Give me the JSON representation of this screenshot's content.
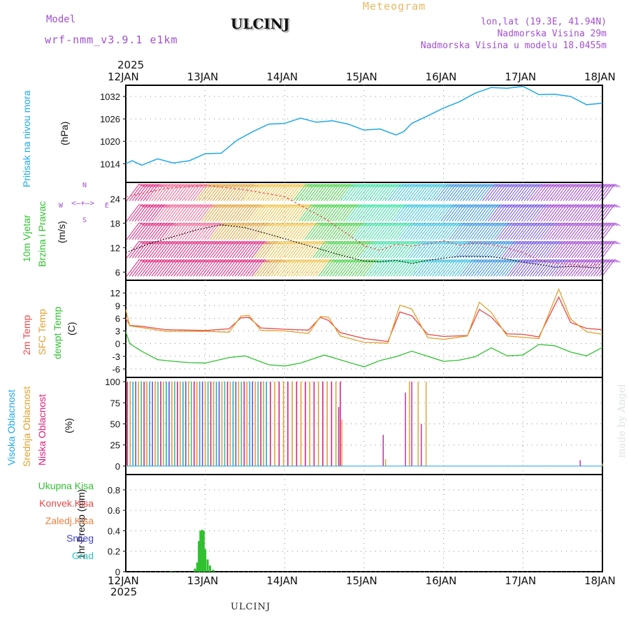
{
  "header": {
    "model_label": "Model",
    "model_name": "wrf-nmm_v3.9.1 e1km",
    "station": "ULCINJ",
    "meteogram": "Meteogram",
    "lonlat": "lon,lat (19.3E, 41.94N)",
    "elevation": "Nadmorska Visina 29m",
    "model_elevation": "Nadmorska Visina u modelu 18.0455m",
    "footer_station": "ULCINJ",
    "credit": "made by Angel"
  },
  "colors": {
    "pressure": "#1ea8e8",
    "temp2m": "#e84848",
    "sfc": "#e0a030",
    "dewpt": "#30c030",
    "high_cloud": "#1ea8e8",
    "mid_cloud": "#e0a030",
    "low_cloud": "#e0207a",
    "total_precip": "#30c030",
    "purple": "#a050d0"
  },
  "chart_data": [
    {
      "type": "line",
      "panel": "pressure",
      "ylabel_top": "Pritisak na nivou mora",
      "ylabel_unit": "(hPa)",
      "year": "2025",
      "x_tick_labels": [
        "12JAN",
        "13JAN",
        "14JAN",
        "15JAN",
        "16JAN",
        "17JAN",
        "18JAN"
      ],
      "x_range_days": [
        0,
        6
      ],
      "ylim": [
        1009,
        1035
      ],
      "yticks": [
        1014,
        1020,
        1026,
        1032
      ],
      "grid": true,
      "series": [
        {
          "x": [
            0,
            0.08,
            0.2,
            0.4,
            0.6,
            0.8,
            1.0,
            1.2,
            1.4,
            1.6,
            1.8,
            2.0,
            2.2,
            2.4,
            2.6,
            2.8,
            3.0,
            3.2,
            3.4,
            3.5,
            3.6,
            3.8,
            4.0,
            4.2,
            4.4,
            4.6,
            4.8,
            5.0,
            5.2,
            5.4,
            5.6,
            5.8,
            6.0
          ],
          "y": [
            1014,
            1014.8,
            1013.6,
            1015.3,
            1014.2,
            1014.8,
            1016.7,
            1016.8,
            1020.3,
            1022.6,
            1024.6,
            1024.8,
            1026.2,
            1025.1,
            1025.5,
            1024.6,
            1023.0,
            1023.3,
            1021.7,
            1022.6,
            1024.8,
            1026.8,
            1028.9,
            1030.6,
            1032.9,
            1034.4,
            1034.2,
            1034.7,
            1032.5,
            1032.6,
            1032.0,
            1029.8,
            1030.2
          ]
        }
      ]
    },
    {
      "type": "line",
      "panel": "wind",
      "ylabel_top": "10m Vjetar",
      "ylabel_mid": "Brzina i Pravac",
      "ylabel_unit": "(m/s)",
      "compass_n": "N",
      "compass_s": "S",
      "compass_w": "W",
      "compass_e": "E",
      "x_range_days": [
        0,
        6
      ],
      "ylim": [
        4,
        28
      ],
      "yticks": [
        6,
        12,
        18,
        24
      ],
      "grid": true,
      "series": [
        {
          "name": "gust",
          "x": [
            0,
            0.5,
            1.0,
            1.5,
            2.0,
            2.5,
            3.0,
            3.2,
            3.4,
            3.6,
            3.8,
            4.0,
            4.2,
            4.4,
            4.6,
            4.8,
            5.0,
            5.2,
            5.4,
            5.6,
            5.8,
            6.0
          ],
          "y": [
            24.5,
            26.5,
            27.3,
            26.2,
            24.5,
            19.2,
            12.5,
            11.3,
            12.8,
            12.4,
            12.9,
            13.7,
            12.6,
            13.1,
            12.8,
            11.9,
            10.8,
            8.9,
            8.2,
            7.9,
            7.5,
            8.0
          ]
        },
        {
          "name": "speed",
          "x": [
            0,
            0.3,
            0.6,
            0.9,
            1.2,
            1.5,
            1.8,
            2.1,
            2.4,
            2.7,
            3.0,
            3.2,
            3.4,
            3.6,
            3.8,
            4.0,
            4.2,
            4.4,
            4.6,
            4.8,
            5.0,
            5.2,
            5.4,
            5.6,
            5.8,
            6.0
          ],
          "y": [
            10.8,
            13.0,
            14.7,
            16.4,
            17.6,
            16.9,
            15.3,
            13.6,
            11.9,
            10.2,
            8.7,
            8.5,
            8.9,
            8.1,
            8.9,
            9.4,
            9.9,
            9.9,
            9.8,
            9.2,
            8.4,
            7.9,
            7.2,
            7.4,
            7.2,
            7.0
          ]
        }
      ],
      "bands": [
        {
          "center": 6,
          "phase": 0
        },
        {
          "center": 10.5,
          "phase": 0.2
        },
        {
          "center": 15,
          "phase": 0.45
        },
        {
          "center": 19.5,
          "phase": 0.7
        },
        {
          "center": 24.5,
          "phase": 0.9
        }
      ]
    },
    {
      "type": "line",
      "panel": "temperature",
      "ylabel_1": "2m Temp",
      "ylabel_2": "SFC Temp",
      "ylabel_3": "dewpt Temp",
      "ylabel_unit": "(C)",
      "x_range_days": [
        0,
        6
      ],
      "ylim": [
        -8,
        15
      ],
      "yticks": [
        -6,
        -3,
        0,
        3,
        6,
        9,
        12
      ],
      "grid": true,
      "series": [
        {
          "name": "2m",
          "x": [
            0,
            0.05,
            0.2,
            0.5,
            1.0,
            1.3,
            1.45,
            1.55,
            1.7,
            2.0,
            2.3,
            2.45,
            2.55,
            2.7,
            3.0,
            3.3,
            3.45,
            3.6,
            3.8,
            4.0,
            4.3,
            4.45,
            4.6,
            4.8,
            5.0,
            5.2,
            5.45,
            5.6,
            5.8,
            6.0
          ],
          "y": [
            6,
            4.3,
            4.1,
            3.3,
            3.1,
            3.5,
            6.1,
            6.2,
            3.7,
            3.4,
            3.2,
            6.2,
            5.5,
            2.6,
            1.2,
            0.5,
            7.5,
            6.6,
            2.2,
            1.7,
            1.9,
            8.1,
            6.3,
            2.3,
            2.2,
            1.6,
            11.0,
            5.0,
            3.6,
            3.3
          ]
        },
        {
          "name": "sfc",
          "x": [
            0,
            0.05,
            0.2,
            0.5,
            1.0,
            1.3,
            1.45,
            1.55,
            1.7,
            2.0,
            2.3,
            2.45,
            2.55,
            2.7,
            3.0,
            3.3,
            3.45,
            3.6,
            3.8,
            4.0,
            4.3,
            4.45,
            4.6,
            4.8,
            5.0,
            5.2,
            5.45,
            5.6,
            5.8,
            6.0
          ],
          "y": [
            8,
            4.2,
            3.8,
            2.9,
            2.9,
            2.7,
            6.5,
            6.7,
            3.1,
            3.0,
            2.4,
            6.4,
            6.3,
            1.8,
            0.3,
            0.1,
            9.1,
            8.2,
            1.4,
            1.0,
            1.8,
            9.8,
            7.4,
            1.8,
            1.5,
            1.2,
            12.9,
            5.8,
            2.8,
            2.2
          ]
        },
        {
          "name": "dewpt",
          "x": [
            0,
            0.05,
            0.2,
            0.4,
            0.6,
            0.8,
            1.0,
            1.3,
            1.5,
            1.8,
            2.0,
            2.2,
            2.5,
            2.8,
            3.0,
            3.2,
            3.4,
            3.6,
            3.8,
            4.0,
            4.2,
            4.4,
            4.6,
            4.8,
            5.0,
            5.2,
            5.4,
            5.6,
            5.8,
            6.0
          ],
          "y": [
            2.8,
            0,
            -1.8,
            -3.8,
            -4.2,
            -4.5,
            -4.6,
            -3.3,
            -2.9,
            -5.0,
            -5.3,
            -4.6,
            -2.7,
            -4.4,
            -5.5,
            -4.0,
            -3.1,
            -1.8,
            -3.0,
            -4.2,
            -3.9,
            -3.1,
            -1.0,
            -2.9,
            -2.7,
            -0.2,
            -0.5,
            -2.0,
            -2.9,
            -0.9
          ]
        }
      ]
    },
    {
      "type": "bar",
      "panel": "clouds",
      "ylabel_1": "Visoka Oblacnost",
      "ylabel_2": "Srednja Oblacnost",
      "ylabel_3": "Niska Oblacnost",
      "ylabel_unit": "(%)",
      "x_range_days": [
        0,
        6
      ],
      "ylim": [
        -10,
        105
      ],
      "yticks": [
        0,
        25,
        50,
        75,
        100
      ],
      "grid": true,
      "series": [
        {
          "name": "mixed",
          "x_start": 0.02,
          "x_end": 1.8,
          "spacing": 0.035,
          "value": 100
        },
        {
          "name": "mid",
          "x_start": 1.82,
          "x_end": 2.72,
          "spacing": 0.055,
          "value": 100
        },
        {
          "name": "scattered",
          "x": [
            2.68,
            2.72,
            3.24,
            3.27,
            3.52,
            3.57,
            3.6,
            3.68,
            3.72,
            3.78,
            5.72,
            6.0
          ],
          "y": [
            70,
            55,
            37,
            8,
            87,
            100,
            100,
            100,
            50,
            100,
            7,
            3
          ]
        }
      ]
    },
    {
      "type": "bar",
      "panel": "precip",
      "legend_total": "Ukupna Kisa",
      "legend_conv": "Konvek.Kisa",
      "legend_frozen": "Zaledj.Kisa",
      "legend_snow": "Snijeg",
      "legend_hail": "Grad",
      "ylabel": "1hr Precip (mm)",
      "x_range_days": [
        0,
        6
      ],
      "ylim": [
        0,
        0.95
      ],
      "yticks": [
        0,
        0.2,
        0.4,
        0.6,
        0.8
      ],
      "grid": true,
      "series": [
        {
          "name": "Ukupna Kisa",
          "x": [
            0.58,
            0.87,
            0.9,
            0.92,
            0.94,
            0.96,
            0.98,
            1.0,
            1.03,
            1.06,
            1.1
          ],
          "y": [
            0.005,
            0.03,
            0.09,
            0.3,
            0.4,
            0.41,
            0.4,
            0.22,
            0.12,
            0.06,
            0.02
          ]
        }
      ]
    }
  ]
}
